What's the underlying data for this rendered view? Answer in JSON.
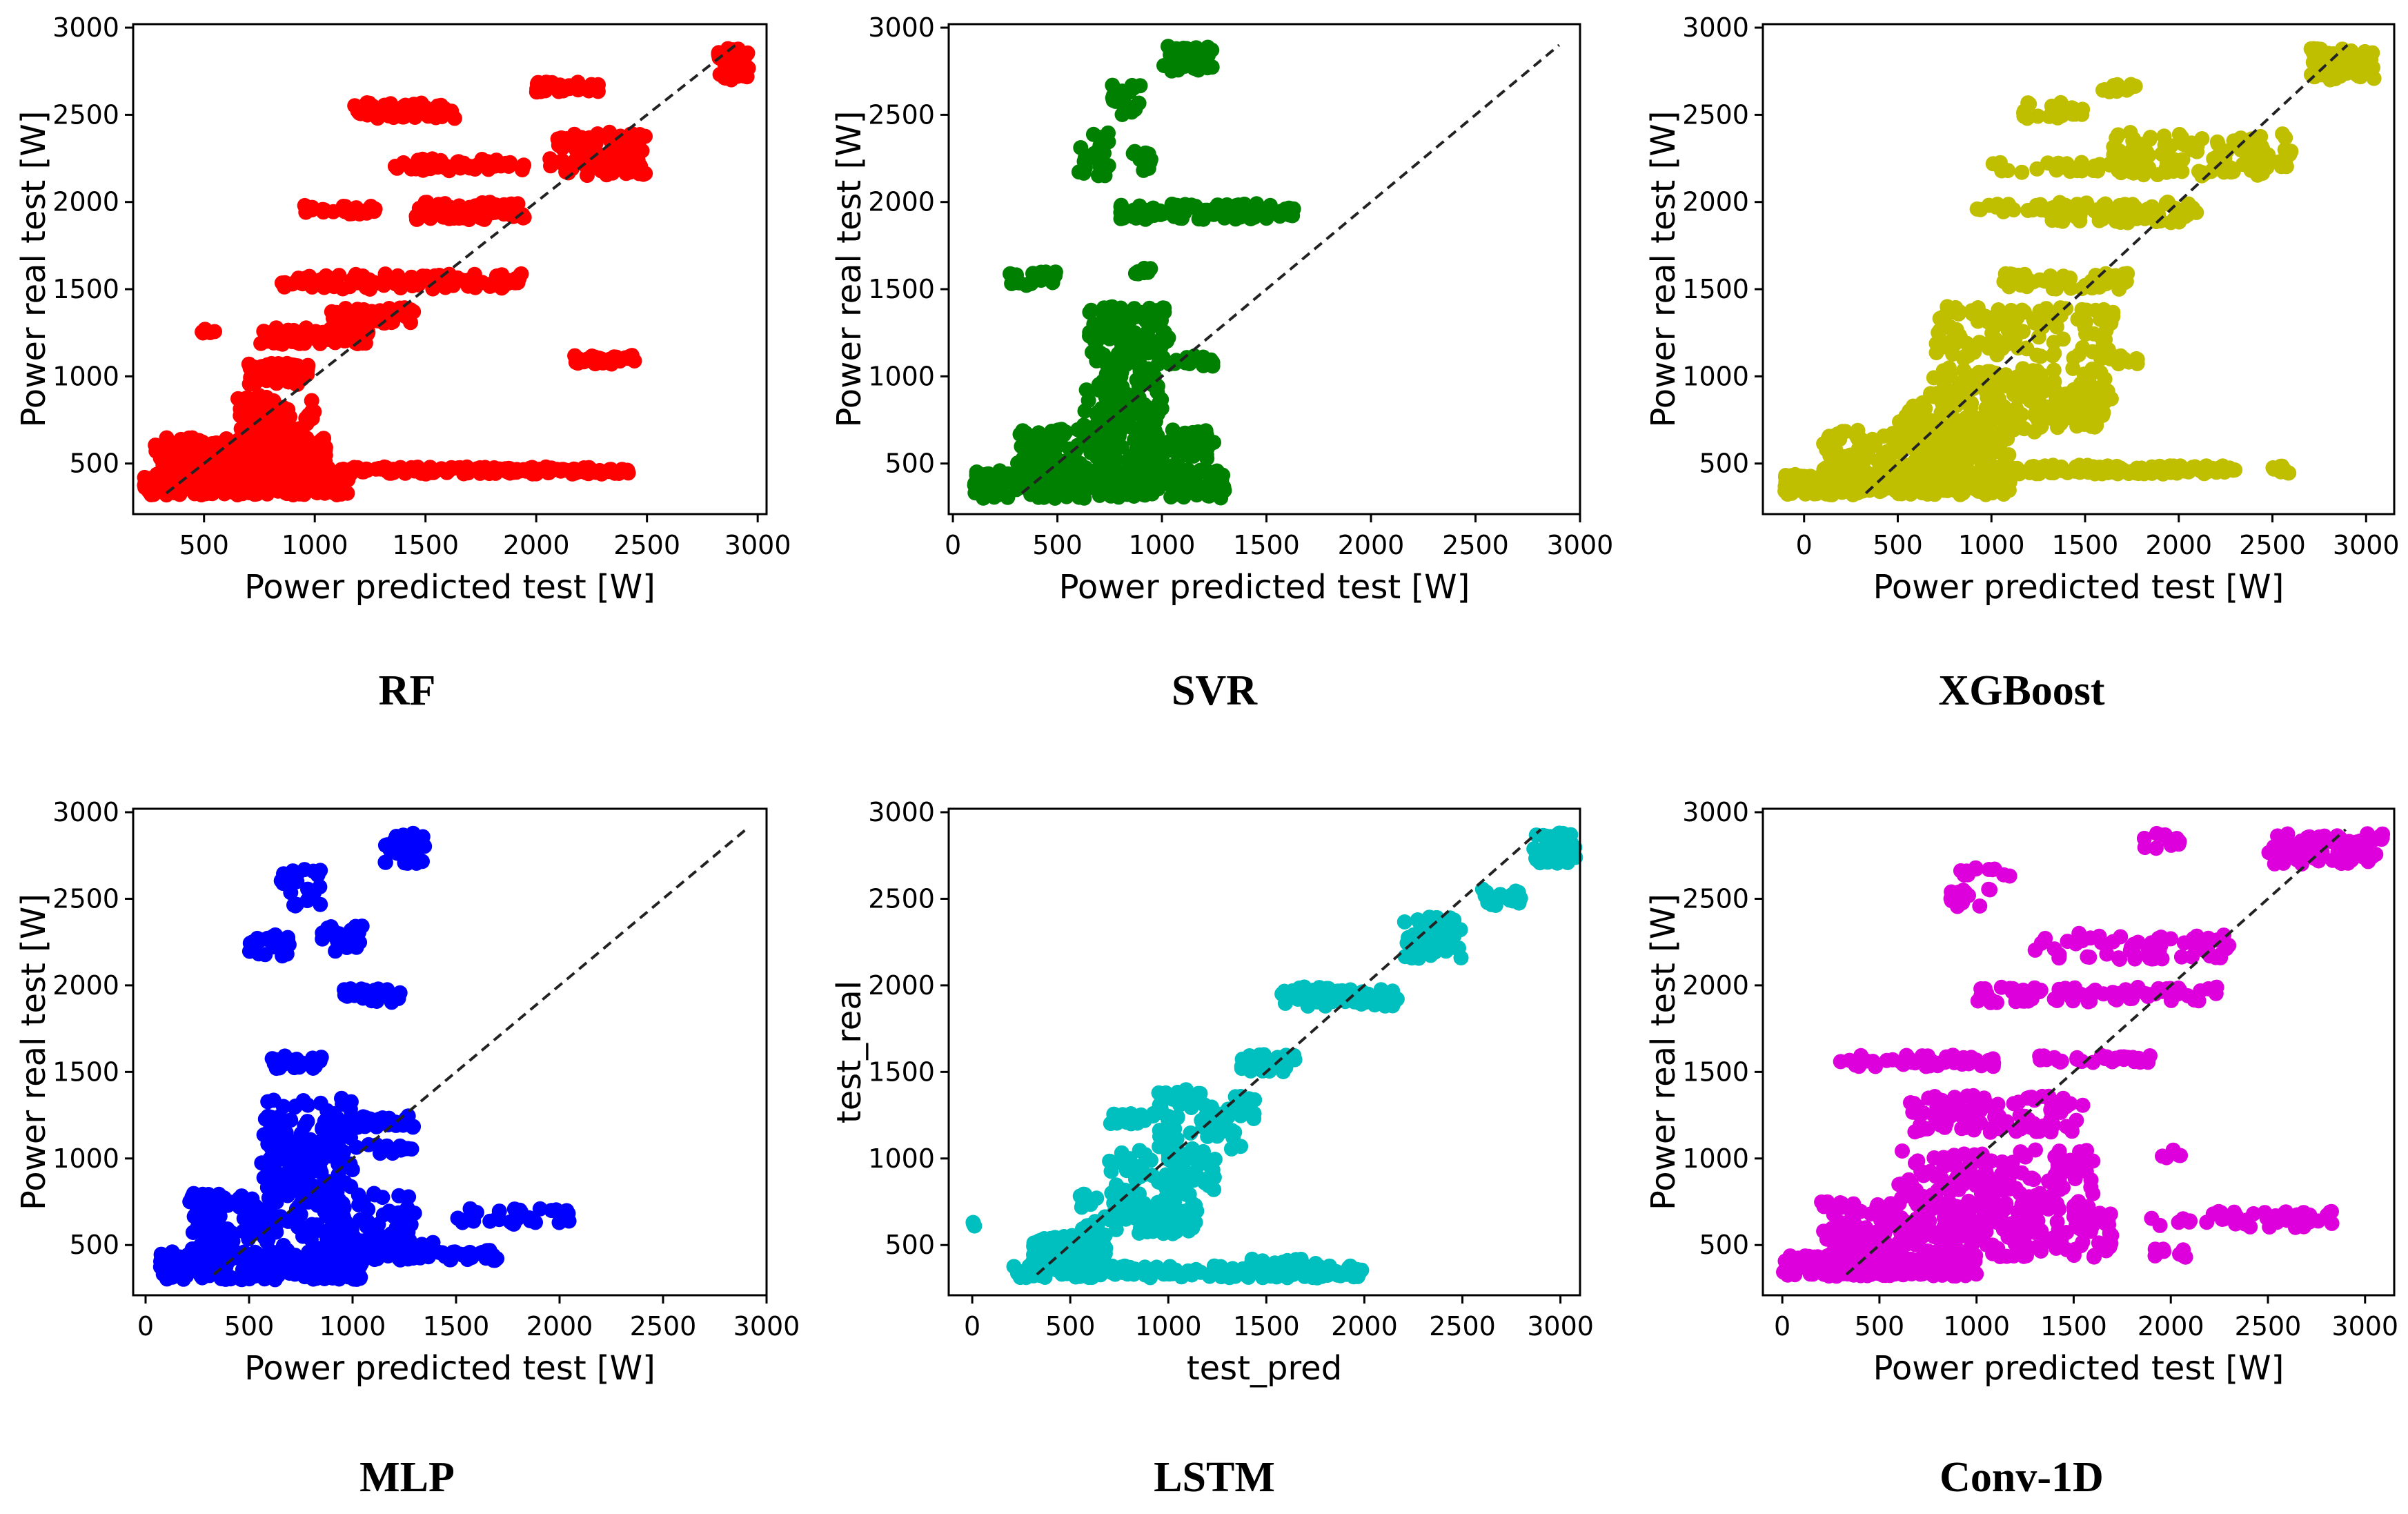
{
  "chart_data": [
    {
      "type": "scatter",
      "caption": "RF",
      "color": "#ff0000",
      "xlabel": "Power predicted test [W]",
      "ylabel": "Power real test [W]",
      "xlim": [
        180,
        3040
      ],
      "ylim": [
        210,
        3020
      ],
      "xticks": [
        500,
        1000,
        1500,
        2000,
        2500,
        3000
      ],
      "yticks": [
        500,
        1000,
        1500,
        2000,
        2500,
        3000
      ],
      "diagonal": [
        330,
        2900
      ],
      "clusters": [
        {
          "x": [
            230,
            1150
          ],
          "y": [
            320,
            440
          ],
          "n": 320
        },
        {
          "x": [
            280,
            1050
          ],
          "y": [
            430,
            650
          ],
          "n": 230
        },
        {
          "x": [
            650,
            1000
          ],
          "y": [
            500,
            900
          ],
          "n": 120
        },
        {
          "x": [
            1000,
            2350
          ],
          "y": [
            440,
            480
          ],
          "n": 160
        },
        {
          "x": [
            2350,
            2420
          ],
          "y": [
            440,
            480
          ],
          "n": 8
        },
        {
          "x": [
            480,
            560
          ],
          "y": [
            1230,
            1280
          ],
          "n": 6
        },
        {
          "x": [
            700,
            980
          ],
          "y": [
            950,
            1080
          ],
          "n": 60
        },
        {
          "x": [
            750,
            1250
          ],
          "y": [
            1180,
            1280
          ],
          "n": 70
        },
        {
          "x": [
            1050,
            1450
          ],
          "y": [
            1300,
            1400
          ],
          "n": 50
        },
        {
          "x": [
            850,
            1150
          ],
          "y": [
            1500,
            1580
          ],
          "n": 30
        },
        {
          "x": [
            1150,
            1950
          ],
          "y": [
            1500,
            1590
          ],
          "n": 70
        },
        {
          "x": [
            950,
            1300
          ],
          "y": [
            1930,
            1980
          ],
          "n": 25
        },
        {
          "x": [
            1450,
            1950
          ],
          "y": [
            1900,
            2000
          ],
          "n": 90
        },
        {
          "x": [
            1350,
            1950
          ],
          "y": [
            2180,
            2250
          ],
          "n": 55
        },
        {
          "x": [
            2050,
            2500
          ],
          "y": [
            2150,
            2400
          ],
          "n": 90
        },
        {
          "x": [
            1150,
            1650
          ],
          "y": [
            2480,
            2570
          ],
          "n": 55
        },
        {
          "x": [
            2000,
            2300
          ],
          "y": [
            2630,
            2690
          ],
          "n": 30
        },
        {
          "x": [
            2150,
            2450
          ],
          "y": [
            1070,
            1120
          ],
          "n": 30
        },
        {
          "x": [
            2820,
            2960
          ],
          "y": [
            2700,
            2880
          ],
          "n": 60
        }
      ]
    },
    {
      "type": "scatter",
      "caption": "SVR",
      "color": "#008000",
      "xlabel": "Power predicted test [W]",
      "ylabel": "Power real test [W]",
      "xlim": [
        -20,
        3000
      ],
      "ylim": [
        210,
        3020
      ],
      "xticks": [
        0,
        500,
        1000,
        1500,
        2000,
        2500,
        3000
      ],
      "yticks": [
        500,
        1000,
        1500,
        2000,
        2500,
        3000
      ],
      "diagonal": [
        330,
        2900
      ],
      "clusters": [
        {
          "x": [
            100,
            1300
          ],
          "y": [
            300,
            460
          ],
          "n": 280
        },
        {
          "x": [
            300,
            1250
          ],
          "y": [
            450,
            700
          ],
          "n": 200
        },
        {
          "x": [
            620,
            1000
          ],
          "y": [
            700,
            1050
          ],
          "n": 90
        },
        {
          "x": [
            650,
            1050
          ],
          "y": [
            1050,
            1400
          ],
          "n": 120
        },
        {
          "x": [
            1050,
            1250
          ],
          "y": [
            1050,
            1120
          ],
          "n": 18
        },
        {
          "x": [
            260,
            500
          ],
          "y": [
            1520,
            1600
          ],
          "n": 25
        },
        {
          "x": [
            850,
            950
          ],
          "y": [
            1570,
            1620
          ],
          "n": 8
        },
        {
          "x": [
            800,
            1650
          ],
          "y": [
            1900,
            1990
          ],
          "n": 100
        },
        {
          "x": [
            600,
            750
          ],
          "y": [
            2150,
            2420
          ],
          "n": 25
        },
        {
          "x": [
            850,
            950
          ],
          "y": [
            2180,
            2300
          ],
          "n": 12
        },
        {
          "x": [
            750,
            900
          ],
          "y": [
            2500,
            2680
          ],
          "n": 20
        },
        {
          "x": [
            1000,
            1250
          ],
          "y": [
            2750,
            2900
          ],
          "n": 35
        }
      ]
    },
    {
      "type": "scatter",
      "caption": "XGBoost",
      "color": "#bfbf00",
      "xlabel": "Power predicted test [W]",
      "ylabel": "Power real test [W]",
      "xlim": [
        -220,
        3150
      ],
      "ylim": [
        210,
        3020
      ],
      "xticks": [
        0,
        500,
        1000,
        1500,
        2000,
        2500,
        3000
      ],
      "yticks": [
        500,
        1000,
        1500,
        2000,
        2500,
        3000
      ],
      "diagonal": [
        330,
        2900
      ],
      "clusters": [
        {
          "x": [
            -120,
            1100
          ],
          "y": [
            320,
            440
          ],
          "n": 300
        },
        {
          "x": [
            100,
            1100
          ],
          "y": [
            430,
            700
          ],
          "n": 220
        },
        {
          "x": [
            1000,
            2300
          ],
          "y": [
            440,
            490
          ],
          "n": 130
        },
        {
          "x": [
            2500,
            2600
          ],
          "y": [
            440,
            490
          ],
          "n": 8
        },
        {
          "x": [
            500,
            1600
          ],
          "y": [
            680,
            850
          ],
          "n": 120
        },
        {
          "x": [
            650,
            1650
          ],
          "y": [
            850,
            1050
          ],
          "n": 110
        },
        {
          "x": [
            700,
            1650
          ],
          "y": [
            1100,
            1400
          ],
          "n": 120
        },
        {
          "x": [
            1650,
            1800
          ],
          "y": [
            1070,
            1120
          ],
          "n": 10
        },
        {
          "x": [
            1050,
            1750
          ],
          "y": [
            1500,
            1590
          ],
          "n": 60
        },
        {
          "x": [
            1250,
            2100
          ],
          "y": [
            1880,
            2000
          ],
          "n": 80
        },
        {
          "x": [
            900,
            1250
          ],
          "y": [
            1940,
            1990
          ],
          "n": 14
        },
        {
          "x": [
            1650,
            2600
          ],
          "y": [
            2150,
            2400
          ],
          "n": 110
        },
        {
          "x": [
            1000,
            1700
          ],
          "y": [
            2170,
            2230
          ],
          "n": 25
        },
        {
          "x": [
            1150,
            1500
          ],
          "y": [
            2480,
            2570
          ],
          "n": 25
        },
        {
          "x": [
            1550,
            1800
          ],
          "y": [
            2630,
            2680
          ],
          "n": 12
        },
        {
          "x": [
            2700,
            3050
          ],
          "y": [
            2700,
            2880
          ],
          "n": 70
        }
      ]
    },
    {
      "type": "scatter",
      "caption": "MLP",
      "color": "#0000ff",
      "xlabel": "Power predicted test [W]",
      "ylabel": "Power real test [W]",
      "xlim": [
        -60,
        3000
      ],
      "ylim": [
        210,
        3020
      ],
      "xticks": [
        0,
        500,
        1000,
        1500,
        2000,
        2500,
        3000
      ],
      "yticks": [
        500,
        1000,
        1500,
        2000,
        2500,
        3000
      ],
      "diagonal": [
        330,
        2900
      ],
      "clusters": [
        {
          "x": [
            70,
            1050
          ],
          "y": [
            300,
            460
          ],
          "n": 260
        },
        {
          "x": [
            200,
            1300
          ],
          "y": [
            450,
            800
          ],
          "n": 200
        },
        {
          "x": [
            550,
            1000
          ],
          "y": [
            800,
            1350
          ],
          "n": 150
        },
        {
          "x": [
            1000,
            1300
          ],
          "y": [
            1180,
            1250
          ],
          "n": 25
        },
        {
          "x": [
            1000,
            1300
          ],
          "y": [
            1030,
            1080
          ],
          "n": 14
        },
        {
          "x": [
            1100,
            1700
          ],
          "y": [
            410,
            470
          ],
          "n": 50
        },
        {
          "x": [
            1100,
            1400
          ],
          "y": [
            490,
            540
          ],
          "n": 16
        },
        {
          "x": [
            1500,
            2050
          ],
          "y": [
            620,
            710
          ],
          "n": 35
        },
        {
          "x": [
            600,
            850
          ],
          "y": [
            1520,
            1600
          ],
          "n": 30
        },
        {
          "x": [
            950,
            1250
          ],
          "y": [
            1900,
            1980
          ],
          "n": 30
        },
        {
          "x": [
            500,
            700
          ],
          "y": [
            2170,
            2300
          ],
          "n": 22
        },
        {
          "x": [
            850,
            1050
          ],
          "y": [
            2170,
            2350
          ],
          "n": 24
        },
        {
          "x": [
            650,
            850
          ],
          "y": [
            2450,
            2680
          ],
          "n": 22
        },
        {
          "x": [
            1150,
            1350
          ],
          "y": [
            2700,
            2880
          ],
          "n": 40
        }
      ]
    },
    {
      "type": "scatter",
      "caption": "LSTM",
      "color": "#00bfbf",
      "xlabel": "test_pred",
      "ylabel": "test_real",
      "xlim": [
        -120,
        3100
      ],
      "ylim": [
        210,
        3020
      ],
      "xticks": [
        0,
        500,
        1000,
        1500,
        2000,
        2500,
        3000
      ],
      "yticks": [
        500,
        1000,
        1500,
        2000,
        2500,
        3000
      ],
      "diagonal": [
        330,
        2900
      ],
      "clusters": [
        {
          "x": [
            0,
            20
          ],
          "y": [
            610,
            640
          ],
          "n": 3
        },
        {
          "x": [
            200,
            2000
          ],
          "y": [
            310,
            380
          ],
          "n": 160
        },
        {
          "x": [
            1400,
            1800
          ],
          "y": [
            380,
            420
          ],
          "n": 16
        },
        {
          "x": [
            300,
            700
          ],
          "y": [
            380,
            560
          ],
          "n": 80
        },
        {
          "x": [
            550,
            1150
          ],
          "y": [
            560,
            800
          ],
          "n": 90
        },
        {
          "x": [
            900,
            1150
          ],
          "y": [
            630,
            720
          ],
          "n": 25
        },
        {
          "x": [
            700,
            1250
          ],
          "y": [
            800,
            1050
          ],
          "n": 70
        },
        {
          "x": [
            700,
            1050
          ],
          "y": [
            1200,
            1260
          ],
          "n": 22
        },
        {
          "x": [
            950,
            1450
          ],
          "y": [
            1050,
            1400
          ],
          "n": 70
        },
        {
          "x": [
            1350,
            1650
          ],
          "y": [
            1500,
            1600
          ],
          "n": 30
        },
        {
          "x": [
            1550,
            2200
          ],
          "y": [
            1880,
            1990
          ],
          "n": 55
        },
        {
          "x": [
            2200,
            2500
          ],
          "y": [
            2150,
            2400
          ],
          "n": 55
        },
        {
          "x": [
            2600,
            2800
          ],
          "y": [
            2450,
            2560
          ],
          "n": 18
        },
        {
          "x": [
            2850,
            3080
          ],
          "y": [
            2700,
            2880
          ],
          "n": 45
        }
      ]
    },
    {
      "type": "scatter",
      "caption": "Conv-1D",
      "color": "#dd00dd",
      "xlabel": "Power predicted test [W]",
      "ylabel": "Power real test [W]",
      "xlim": [
        -100,
        3150
      ],
      "ylim": [
        210,
        3020
      ],
      "xticks": [
        0,
        500,
        1000,
        1500,
        2000,
        2500,
        3000
      ],
      "yticks": [
        500,
        1000,
        1500,
        2000,
        2500,
        3000
      ],
      "diagonal": [
        330,
        2900
      ],
      "clusters": [
        {
          "x": [
            0,
            1000
          ],
          "y": [
            320,
            440
          ],
          "n": 270
        },
        {
          "x": [
            200,
            1700
          ],
          "y": [
            430,
            750
          ],
          "n": 250
        },
        {
          "x": [
            600,
            1600
          ],
          "y": [
            700,
            1050
          ],
          "n": 160
        },
        {
          "x": [
            650,
            1550
          ],
          "y": [
            1150,
            1370
          ],
          "n": 110
        },
        {
          "x": [
            1900,
            2850
          ],
          "y": [
            600,
            700
          ],
          "n": 50
        },
        {
          "x": [
            1900,
            2100
          ],
          "y": [
            420,
            480
          ],
          "n": 8
        },
        {
          "x": [
            1950,
            2050
          ],
          "y": [
            1000,
            1050
          ],
          "n": 5
        },
        {
          "x": [
            300,
            1100
          ],
          "y": [
            1530,
            1600
          ],
          "n": 55
        },
        {
          "x": [
            1300,
            1900
          ],
          "y": [
            1550,
            1600
          ],
          "n": 30
        },
        {
          "x": [
            1000,
            2250
          ],
          "y": [
            1900,
            1990
          ],
          "n": 80
        },
        {
          "x": [
            1300,
            2300
          ],
          "y": [
            2150,
            2300
          ],
          "n": 70
        },
        {
          "x": [
            850,
            1100
          ],
          "y": [
            2450,
            2560
          ],
          "n": 14
        },
        {
          "x": [
            900,
            1200
          ],
          "y": [
            2630,
            2680
          ],
          "n": 12
        },
        {
          "x": [
            1850,
            2050
          ],
          "y": [
            2780,
            2880
          ],
          "n": 14
        },
        {
          "x": [
            2500,
            3100
          ],
          "y": [
            2700,
            2880
          ],
          "n": 80
        }
      ]
    }
  ]
}
